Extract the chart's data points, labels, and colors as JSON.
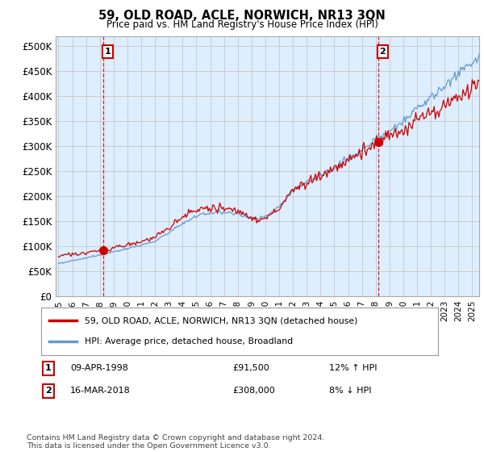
{
  "title": "59, OLD ROAD, ACLE, NORWICH, NR13 3QN",
  "subtitle": "Price paid vs. HM Land Registry's House Price Index (HPI)",
  "ylabel_ticks": [
    "£0",
    "£50K",
    "£100K",
    "£150K",
    "£200K",
    "£250K",
    "£300K",
    "£350K",
    "£400K",
    "£450K",
    "£500K"
  ],
  "ytick_values": [
    0,
    50000,
    100000,
    150000,
    200000,
    250000,
    300000,
    350000,
    400000,
    450000,
    500000
  ],
  "ylim": [
    0,
    520000
  ],
  "xlim_start": 1994.8,
  "xlim_end": 2025.5,
  "sale1_x": 1998.27,
  "sale1_y": 91500,
  "sale1_label": "1",
  "sale2_x": 2018.21,
  "sale2_y": 308000,
  "sale2_label": "2",
  "sale1_date": "09-APR-1998",
  "sale1_price": "£91,500",
  "sale1_hpi": "12% ↑ HPI",
  "sale2_date": "16-MAR-2018",
  "sale2_price": "£308,000",
  "sale2_hpi": "8% ↓ HPI",
  "legend_red": "59, OLD ROAD, ACLE, NORWICH, NR13 3QN (detached house)",
  "legend_blue": "HPI: Average price, detached house, Broadland",
  "footnote": "Contains HM Land Registry data © Crown copyright and database right 2024.\nThis data is licensed under the Open Government Licence v3.0.",
  "line_red_color": "#cc0000",
  "line_blue_color": "#6699cc",
  "marker_color_red": "#cc0000",
  "sale_box_color": "#cc0000",
  "grid_color": "#cccccc",
  "plot_bg_color": "#ddeeff",
  "bg_color": "#ffffff",
  "xtick_years": [
    1995,
    1996,
    1997,
    1998,
    1999,
    2000,
    2001,
    2002,
    2003,
    2004,
    2005,
    2006,
    2007,
    2008,
    2009,
    2010,
    2011,
    2012,
    2013,
    2014,
    2015,
    2016,
    2017,
    2018,
    2019,
    2020,
    2021,
    2022,
    2023,
    2024,
    2025
  ],
  "vline1_x": 1998.27,
  "vline2_x": 2018.21,
  "vline_color": "#cc0000"
}
